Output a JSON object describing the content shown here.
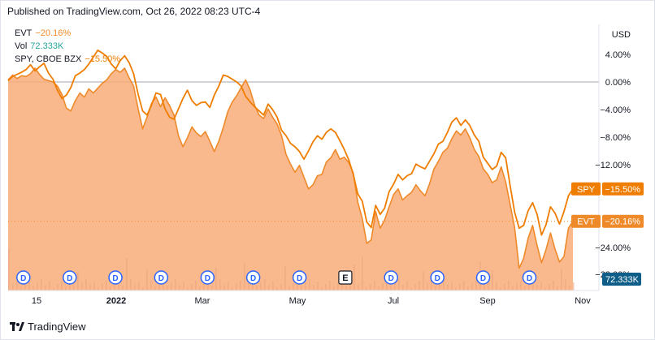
{
  "published": "Published on TradingView.com, Oct 26, 2022 08:23 UTC-4",
  "brand": "TradingView",
  "colors": {
    "evt": "#ef8a2a",
    "area": "#f9ad78",
    "spy": "#ef7d00",
    "vol_text": "#26a69a",
    "vol_badge": "#0f5e8a",
    "dividend": "#2962ff"
  },
  "legend": {
    "evt_label": "EVT",
    "evt_value": "−20.16%",
    "vol_label": "Vol",
    "vol_value": "72.333K",
    "spy_label": "SPY, CBOE BZX",
    "spy_value": "−15.50%"
  },
  "chart_data": {
    "type": "area",
    "title": "",
    "xlabel": "",
    "ylabel": "USD",
    "x_ticks": [
      "15",
      "2022",
      "Mar",
      "May",
      "Jul",
      "Sep",
      "Nov"
    ],
    "y_ticks": [
      "4.00%",
      "0.00%",
      "−4.00%",
      "−8.00%",
      "−12.00%",
      "−16.00%",
      "−20.00%",
      "−24.00%"
    ],
    "ylim": [
      -29,
      7
    ],
    "grid": false,
    "series": [
      {
        "name": "EVT",
        "values": [
          0.3,
          1.0,
          0.5,
          0.9,
          0.8,
          1.2,
          2.0,
          1.1,
          0.4,
          0.2,
          0.0,
          -0.6,
          -1.8,
          -3.8,
          -4.2,
          -2.7,
          -1.6,
          -2.2,
          -1.0,
          -1.6,
          -0.9,
          -0.2,
          0.3,
          1.2,
          1.8,
          1.4,
          2.0,
          0.6,
          -0.6,
          -3.9,
          -6.8,
          -5.1,
          -3.1,
          -2.2,
          -3.6,
          -2.3,
          -3.4,
          -4.8,
          -7.8,
          -9.4,
          -8.1,
          -6.5,
          -7.4,
          -7.9,
          -7.2,
          -8.6,
          -10.1,
          -8.6,
          -6.6,
          -4.3,
          -2.9,
          -2.0,
          -0.8,
          0.3,
          -1.2,
          -3.4,
          -4.8,
          -5.3,
          -3.9,
          -5.1,
          -6.1,
          -7.8,
          -10.5,
          -11.9,
          -13.1,
          -12.1,
          -13.8,
          -15.5,
          -14.9,
          -13.6,
          -13.4,
          -11.6,
          -11.0,
          -9.8,
          -11.2,
          -10.9,
          -11.7,
          -13.2,
          -17.4,
          -19.8,
          -23.4,
          -22.9,
          -18.8,
          -21.2,
          -20.0,
          -18.1,
          -16.3,
          -15.5,
          -17.1,
          -16.5,
          -16.0,
          -14.9,
          -15.8,
          -16.5,
          -14.8,
          -12.6,
          -11.5,
          -10.2,
          -9.6,
          -8.2,
          -7.1,
          -7.7,
          -6.8,
          -8.1,
          -9.8,
          -10.8,
          -12.6,
          -13.4,
          -14.6,
          -14.2,
          -12.3,
          -14.5,
          -17.8,
          -21.1,
          -27.0,
          -25.6,
          -22.7,
          -20.8,
          -23.7,
          -26.2,
          -24.3,
          -21.9,
          -24.2,
          -26.1,
          -25.3,
          -21.2,
          -20.2
        ],
        "color": "#ef8a2a"
      },
      {
        "name": "SPY, CBOE BZX",
        "values": [
          0.2,
          0.8,
          1.1,
          1.4,
          1.8,
          2.5,
          1.6,
          2.2,
          2.7,
          1.3,
          0.4,
          -1.2,
          -2.4,
          -1.9,
          -0.8,
          0.9,
          1.3,
          1.8,
          2.6,
          3.6,
          4.6,
          4.2,
          3.7,
          2.6,
          1.9,
          3.1,
          3.8,
          2.8,
          1.2,
          -1.8,
          -4.2,
          -4.8,
          -3.3,
          -1.6,
          -1.8,
          -3.9,
          -5.1,
          -5.4,
          -3.9,
          -2.4,
          -1.2,
          -2.7,
          -3.4,
          -3.0,
          -2.9,
          -3.7,
          -1.9,
          -0.6,
          1.0,
          0.8,
          0.4,
          0.0,
          -0.6,
          -2.1,
          -2.9,
          -3.6,
          -4.2,
          -4.8,
          -3.2,
          -4.0,
          -5.1,
          -7.0,
          -7.8,
          -8.9,
          -9.4,
          -10.1,
          -11.2,
          -10.0,
          -8.7,
          -7.8,
          -8.3,
          -7.3,
          -6.8,
          -7.3,
          -8.5,
          -9.8,
          -11.3,
          -13.4,
          -16.2,
          -17.3,
          -20.3,
          -21.1,
          -17.9,
          -19.2,
          -18.3,
          -15.9,
          -14.8,
          -13.4,
          -14.2,
          -13.6,
          -13.3,
          -11.9,
          -12.3,
          -12.6,
          -11.5,
          -10.4,
          -9.0,
          -8.6,
          -7.3,
          -5.8,
          -5.2,
          -6.3,
          -5.5,
          -6.3,
          -7.7,
          -8.6,
          -10.9,
          -11.8,
          -12.7,
          -12.2,
          -10.2,
          -11.0,
          -15.1,
          -18.9,
          -21.2,
          -20.8,
          -18.7,
          -17.5,
          -19.2,
          -22.2,
          -20.7,
          -18.1,
          -19.0,
          -20.6,
          -18.8,
          -16.5,
          -15.5
        ],
        "color": "#ef7d00"
      }
    ],
    "last_values": {
      "SPY": "−15.50%",
      "EVT": "−20.16%"
    },
    "volume_last": "72.333K",
    "event_markers": [
      {
        "x": 0.027,
        "label": "D"
      },
      {
        "x": 0.109,
        "label": "D"
      },
      {
        "x": 0.19,
        "label": "D"
      },
      {
        "x": 0.271,
        "label": "D"
      },
      {
        "x": 0.353,
        "label": "D"
      },
      {
        "x": 0.434,
        "label": "D"
      },
      {
        "x": 0.516,
        "label": "D"
      },
      {
        "x": 0.597,
        "label": "E"
      },
      {
        "x": 0.678,
        "label": "D"
      },
      {
        "x": 0.76,
        "label": "D"
      },
      {
        "x": 0.841,
        "label": "D"
      },
      {
        "x": 0.923,
        "label": "D"
      }
    ]
  }
}
